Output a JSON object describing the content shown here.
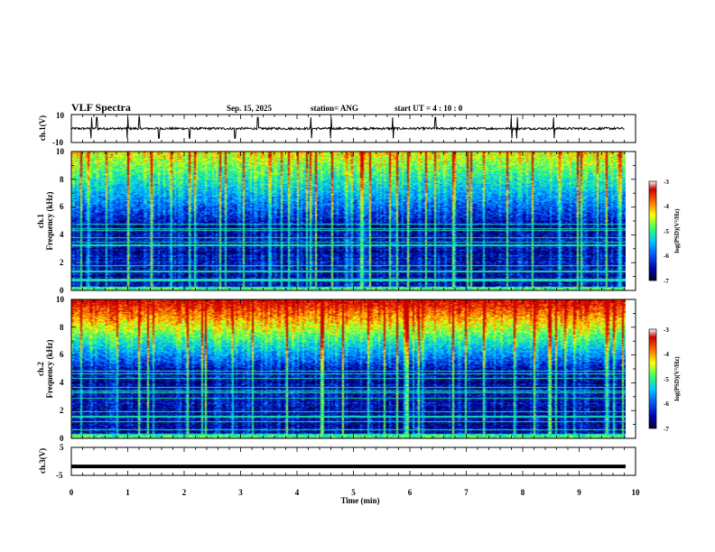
{
  "header": {
    "title": "VLF Spectra",
    "date": "Sep. 15, 2025",
    "station": "station= ANG",
    "start_ut": "start  UT =   4 : 10 : 0"
  },
  "chart_data": [
    {
      "type": "line",
      "name": "channel-1-waveform",
      "ylabel": "ch.1(V)",
      "ylim": [
        -10,
        10
      ],
      "ytick_labels": [
        "10",
        "-10"
      ],
      "baseline": 0,
      "spikes_min": [
        0.35,
        0.45,
        1.0,
        1.2,
        1.55,
        2.1,
        2.9,
        3.3,
        4.25,
        4.6,
        5.7,
        6.45,
        7.8,
        7.9,
        8.55
      ]
    },
    {
      "type": "heatmap",
      "name": "channel-1-spectrogram",
      "ylabel": "Frequency (kHz)",
      "ylabel_channel": "ch.1",
      "ylim": [
        0,
        10
      ],
      "ytick_labels": [
        "0",
        "2",
        "4",
        "6",
        "8",
        "10"
      ],
      "colorbar": {
        "label": "log(PSD)(V²/Hz)",
        "range": [
          -7,
          -3
        ],
        "tick_labels": [
          "-3",
          "-4",
          "-5",
          "-6",
          "-7"
        ]
      }
    },
    {
      "type": "heatmap",
      "name": "channel-2-spectrogram",
      "ylabel": "Frequency (kHz)",
      "ylabel_channel": "ch.2",
      "ylim": [
        0,
        10
      ],
      "ytick_labels": [
        "0",
        "2",
        "4",
        "6",
        "8",
        "10"
      ],
      "colorbar": {
        "label": "log(PSD)(V²/Hz)",
        "range": [
          -7,
          -3
        ],
        "tick_labels": [
          "-3",
          "-4",
          "-5",
          "-6",
          "-7"
        ]
      }
    },
    {
      "type": "line",
      "name": "channel-3-signal",
      "ylabel": "ch.3(V)",
      "ylim": [
        -5,
        5
      ],
      "ytick_labels": [
        "5",
        "-5"
      ],
      "value": -1.8
    }
  ],
  "xaxis": {
    "label": "Time (min)",
    "xlim": [
      0,
      10
    ],
    "tick_labels": [
      "0",
      "1",
      "2",
      "3",
      "4",
      "5",
      "6",
      "7",
      "8",
      "9",
      "10"
    ]
  },
  "colors": {
    "colormap": [
      "#000033",
      "#0000aa",
      "#0066ff",
      "#00ccff",
      "#33ff66",
      "#ffff00",
      "#ff6600",
      "#cc0000",
      "#ffffff"
    ]
  }
}
